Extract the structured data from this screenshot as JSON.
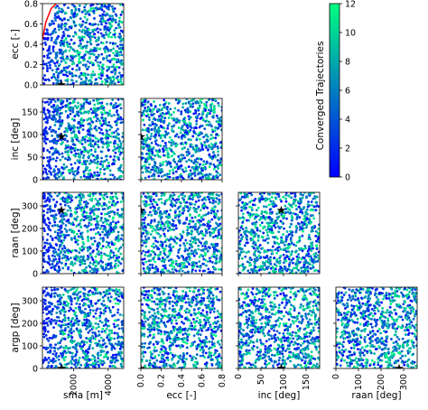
{
  "chart_data": {
    "type": "scatter",
    "layout": "corner-plot",
    "colormap": "winter",
    "colors": {
      "low": "#0000ff",
      "high": "#00ff80",
      "constraint_curve": "#ff0000",
      "marker": "#000000"
    },
    "variables": [
      {
        "key": "sma",
        "label": "sma [m]",
        "range": [
          200,
          4900
        ],
        "ticks": [
          2000,
          4000
        ]
      },
      {
        "key": "ecc",
        "label": "ecc [-]",
        "range": [
          0,
          0.8
        ],
        "ticks": [
          0.0,
          0.2,
          0.4,
          0.6,
          0.8
        ]
      },
      {
        "key": "inc",
        "label": "inc [deg]",
        "range": [
          0,
          180
        ],
        "ticks": [
          0,
          50,
          100,
          150
        ]
      },
      {
        "key": "raan",
        "label": "raan [deg]",
        "range": [
          0,
          360
        ],
        "ticks": [
          0,
          100,
          200,
          300
        ]
      },
      {
        "key": "argp",
        "label": "argp [deg]",
        "range": [
          0,
          360
        ],
        "ticks": [
          0,
          100,
          200,
          300
        ]
      }
    ],
    "panels": [
      {
        "x": "sma",
        "y": "ecc"
      },
      {
        "x": "sma",
        "y": "inc"
      },
      {
        "x": "ecc",
        "y": "inc"
      },
      {
        "x": "sma",
        "y": "raan"
      },
      {
        "x": "ecc",
        "y": "raan"
      },
      {
        "x": "inc",
        "y": "raan"
      },
      {
        "x": "sma",
        "y": "argp"
      },
      {
        "x": "ecc",
        "y": "argp"
      },
      {
        "x": "inc",
        "y": "argp"
      },
      {
        "x": "raan",
        "y": "argp"
      }
    ],
    "highlighted_point": {
      "sma": 1300,
      "ecc": 0.0,
      "inc": 95,
      "raan": 280,
      "argp": 0
    },
    "constraint_curve": {
      "panel": "sma-ecc",
      "points": [
        [
          200,
          0.45
        ],
        [
          400,
          0.62
        ],
        [
          700,
          0.75
        ],
        [
          1000,
          0.8
        ]
      ]
    },
    "points_per_panel": 800,
    "colorbar": {
      "label": "Converged Trajectories",
      "range": [
        0,
        12
      ],
      "ticks": [
        0,
        2,
        4,
        6,
        8,
        10,
        12
      ]
    }
  }
}
